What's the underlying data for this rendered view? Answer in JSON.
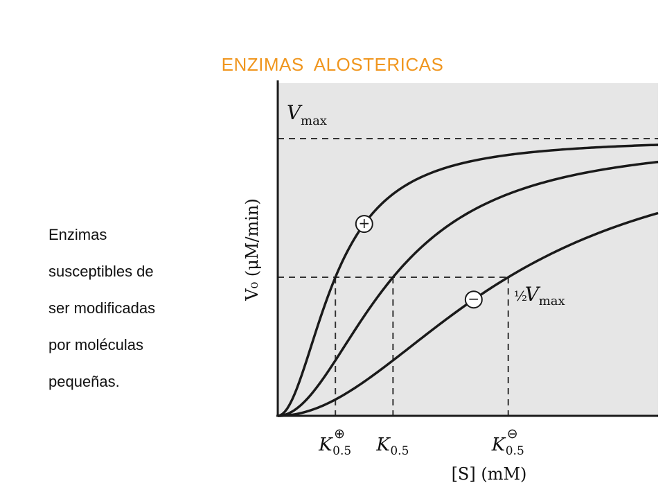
{
  "slide": {
    "title": "ENZIMAS  ALOSTERICAS",
    "body_lines": [
      "Enzimas",
      "susceptibles de",
      "ser modificadas",
      "por moléculas",
      "pequeñas."
    ]
  },
  "chart_data": {
    "type": "line",
    "ylabel": "V₀ (μM/min)",
    "xlabel": "[S] (mM)",
    "reference_lines": [
      {
        "name": "Vmax",
        "label_main": "V",
        "label_sub": "max",
        "y": 1.0
      },
      {
        "name": "half-Vmax",
        "label_frac": "½",
        "label_main": "V",
        "label_sub": "max",
        "y": 0.5
      }
    ],
    "x_ticks": [
      {
        "name": "K0.5+",
        "main": "K",
        "sub": "0.5",
        "sup": "⊕",
        "x": 0.5
      },
      {
        "name": "K0.5",
        "main": "K",
        "sub": "0.5",
        "sup": "",
        "x": 1.0
      },
      {
        "name": "K0.5-",
        "main": "K",
        "sub": "0.5",
        "sup": "⊖",
        "x": 2.0
      }
    ],
    "xlim": [
      0,
      3.3
    ],
    "ylim": [
      0,
      1.0
    ],
    "series": [
      {
        "name": "+",
        "K": 0.5,
        "marker_x": 0.75,
        "color": "#1a1a1a"
      },
      {
        "name": "",
        "K": 1.0,
        "color": "#1a1a1a"
      },
      {
        "name": "−",
        "K": 2.0,
        "marker_x": 1.7,
        "color": "#1a1a1a"
      }
    ],
    "grid": false,
    "background": "#e6e6e6"
  }
}
